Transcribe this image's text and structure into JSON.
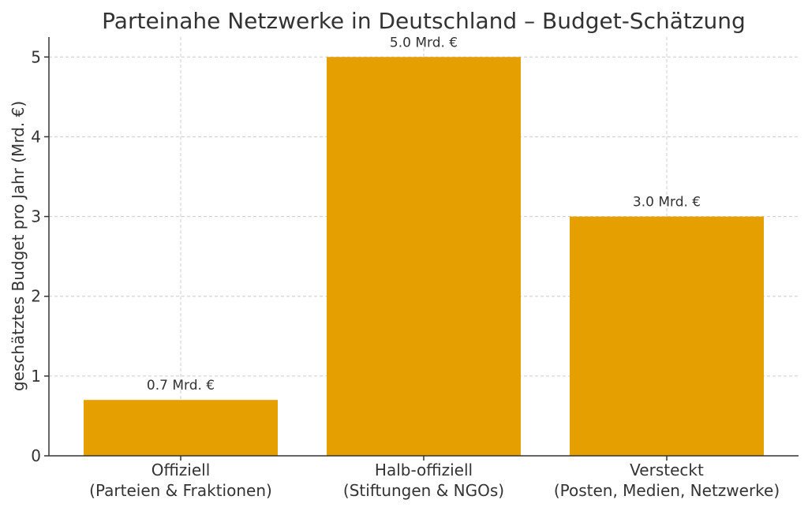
{
  "chart_data": {
    "type": "bar",
    "title": "Parteinahe Netzwerke in Deutschland – Budget-Schätzung",
    "xlabel": "",
    "ylabel": "geschätztes Budget pro Jahr (Mrd. €)",
    "categories": [
      "Offiziell\n(Parteien & Fraktionen)",
      "Halb-offiziell\n(Stiftungen & NGOs)",
      "Versteckt\n(Posten, Medien, Netzwerke)"
    ],
    "values": [
      0.7,
      5.0,
      3.0
    ],
    "data_labels": [
      "0.7 Mrd. €",
      "5.0 Mrd. €",
      "3.0 Mrd. €"
    ],
    "ylim": [
      0,
      5.25
    ],
    "yticks": [
      0,
      1,
      2,
      3,
      4,
      5
    ],
    "grid": true,
    "bar_color": "#E69F00"
  }
}
